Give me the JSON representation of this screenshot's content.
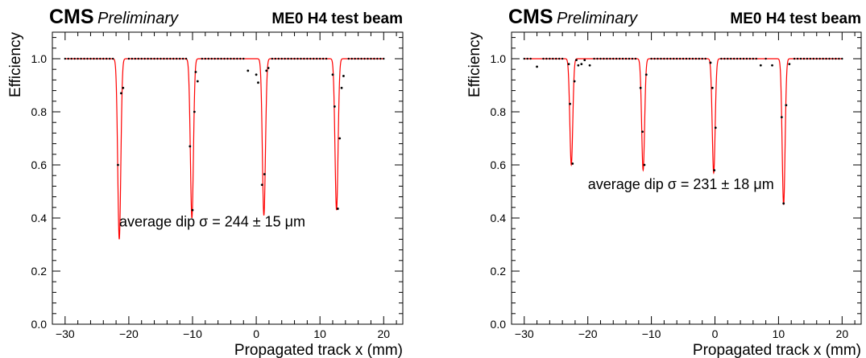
{
  "chart_data": [
    {
      "type": "scatter",
      "experiment": "CMS",
      "status": "Preliminary",
      "title": "ME0 H4 test beam",
      "xlabel": "Propagated track x (mm)",
      "ylabel": "Efficiency",
      "xlim": [
        -32,
        23
      ],
      "ylim": [
        0,
        1.1
      ],
      "xticks": [
        -30,
        -20,
        -10,
        0,
        10,
        20
      ],
      "yticks": [
        0,
        0.2,
        0.4,
        0.6,
        0.8,
        1
      ],
      "xtick_labels": [
        "−30",
        "−20",
        "−10",
        "0",
        "10",
        "20"
      ],
      "ytick_labels": [
        "0.0",
        "0.2",
        "0.4",
        "0.6",
        "0.8",
        "1.0"
      ],
      "grid": false,
      "baseline": 1.0,
      "annotation": "average dip σ = 244 ± 15 μm",
      "fit_color": "#ff0000",
      "point_color": "#000000",
      "dips": [
        {
          "center": -21.5,
          "depth": 0.68,
          "sigma": 0.24
        },
        {
          "center": -10.1,
          "depth": 0.6,
          "sigma": 0.24
        },
        {
          "center": 1.2,
          "depth": 0.59,
          "sigma": 0.24
        },
        {
          "center": 12.6,
          "depth": 0.57,
          "sigma": 0.24
        }
      ],
      "points": [
        [
          -21.7,
          0.6
        ],
        [
          -21.2,
          0.87
        ],
        [
          -20.9,
          0.89
        ],
        [
          -10.4,
          0.67
        ],
        [
          -10.0,
          0.43
        ],
        [
          -9.7,
          0.8
        ],
        [
          -9.5,
          0.95
        ],
        [
          -9.2,
          0.915
        ],
        [
          -1.3,
          0.955
        ],
        [
          0.0,
          0.94
        ],
        [
          0.3,
          0.91
        ],
        [
          0.9,
          0.525
        ],
        [
          1.3,
          0.565
        ],
        [
          1.6,
          0.955
        ],
        [
          1.9,
          0.965
        ],
        [
          12.0,
          0.94
        ],
        [
          12.3,
          0.82
        ],
        [
          12.8,
          0.435
        ],
        [
          13.1,
          0.7
        ],
        [
          13.4,
          0.89
        ],
        [
          13.7,
          0.935
        ]
      ]
    },
    {
      "type": "scatter",
      "experiment": "CMS",
      "status": "Preliminary",
      "title": "ME0 H4 test beam",
      "xlabel": "Propagated track x (mm)",
      "ylabel": "Efficiency",
      "xlim": [
        -32,
        23
      ],
      "ylim": [
        0,
        1.1
      ],
      "xticks": [
        -30,
        -20,
        -10,
        0,
        10,
        20
      ],
      "yticks": [
        0,
        0.2,
        0.4,
        0.6,
        0.8,
        1
      ],
      "xtick_labels": [
        "−30",
        "−20",
        "−10",
        "0",
        "10",
        "20"
      ],
      "ytick_labels": [
        "0.0",
        "0.2",
        "0.4",
        "0.6",
        "0.8",
        "1.0"
      ],
      "grid": false,
      "baseline": 1.0,
      "annotation": "average dip σ = 231 ± 18 μm",
      "fit_color": "#ff0000",
      "point_color": "#000000",
      "dips": [
        {
          "center": -22.6,
          "depth": 0.4,
          "sigma": 0.23
        },
        {
          "center": -11.3,
          "depth": 0.42,
          "sigma": 0.23
        },
        {
          "center": -0.2,
          "depth": 0.43,
          "sigma": 0.23
        },
        {
          "center": 10.8,
          "depth": 0.55,
          "sigma": 0.23
        }
      ],
      "points": [
        [
          -28.0,
          0.97
        ],
        [
          -23.0,
          0.98
        ],
        [
          -22.8,
          0.83
        ],
        [
          -22.4,
          0.605
        ],
        [
          -22.1,
          0.915
        ],
        [
          -21.8,
          0.995
        ],
        [
          -21.5,
          0.975
        ],
        [
          -21.0,
          0.98
        ],
        [
          -20.5,
          0.995
        ],
        [
          -19.7,
          0.975
        ],
        [
          -11.7,
          0.89
        ],
        [
          -11.4,
          0.725
        ],
        [
          -11.1,
          0.6
        ],
        [
          -10.8,
          0.94
        ],
        [
          -0.7,
          0.985
        ],
        [
          -0.4,
          0.89
        ],
        [
          -0.1,
          0.58
        ],
        [
          0.1,
          0.74
        ],
        [
          7.2,
          0.975
        ],
        [
          9.0,
          0.975
        ],
        [
          10.5,
          0.78
        ],
        [
          10.8,
          0.455
        ],
        [
          11.2,
          0.825
        ],
        [
          11.7,
          0.98
        ]
      ]
    }
  ]
}
